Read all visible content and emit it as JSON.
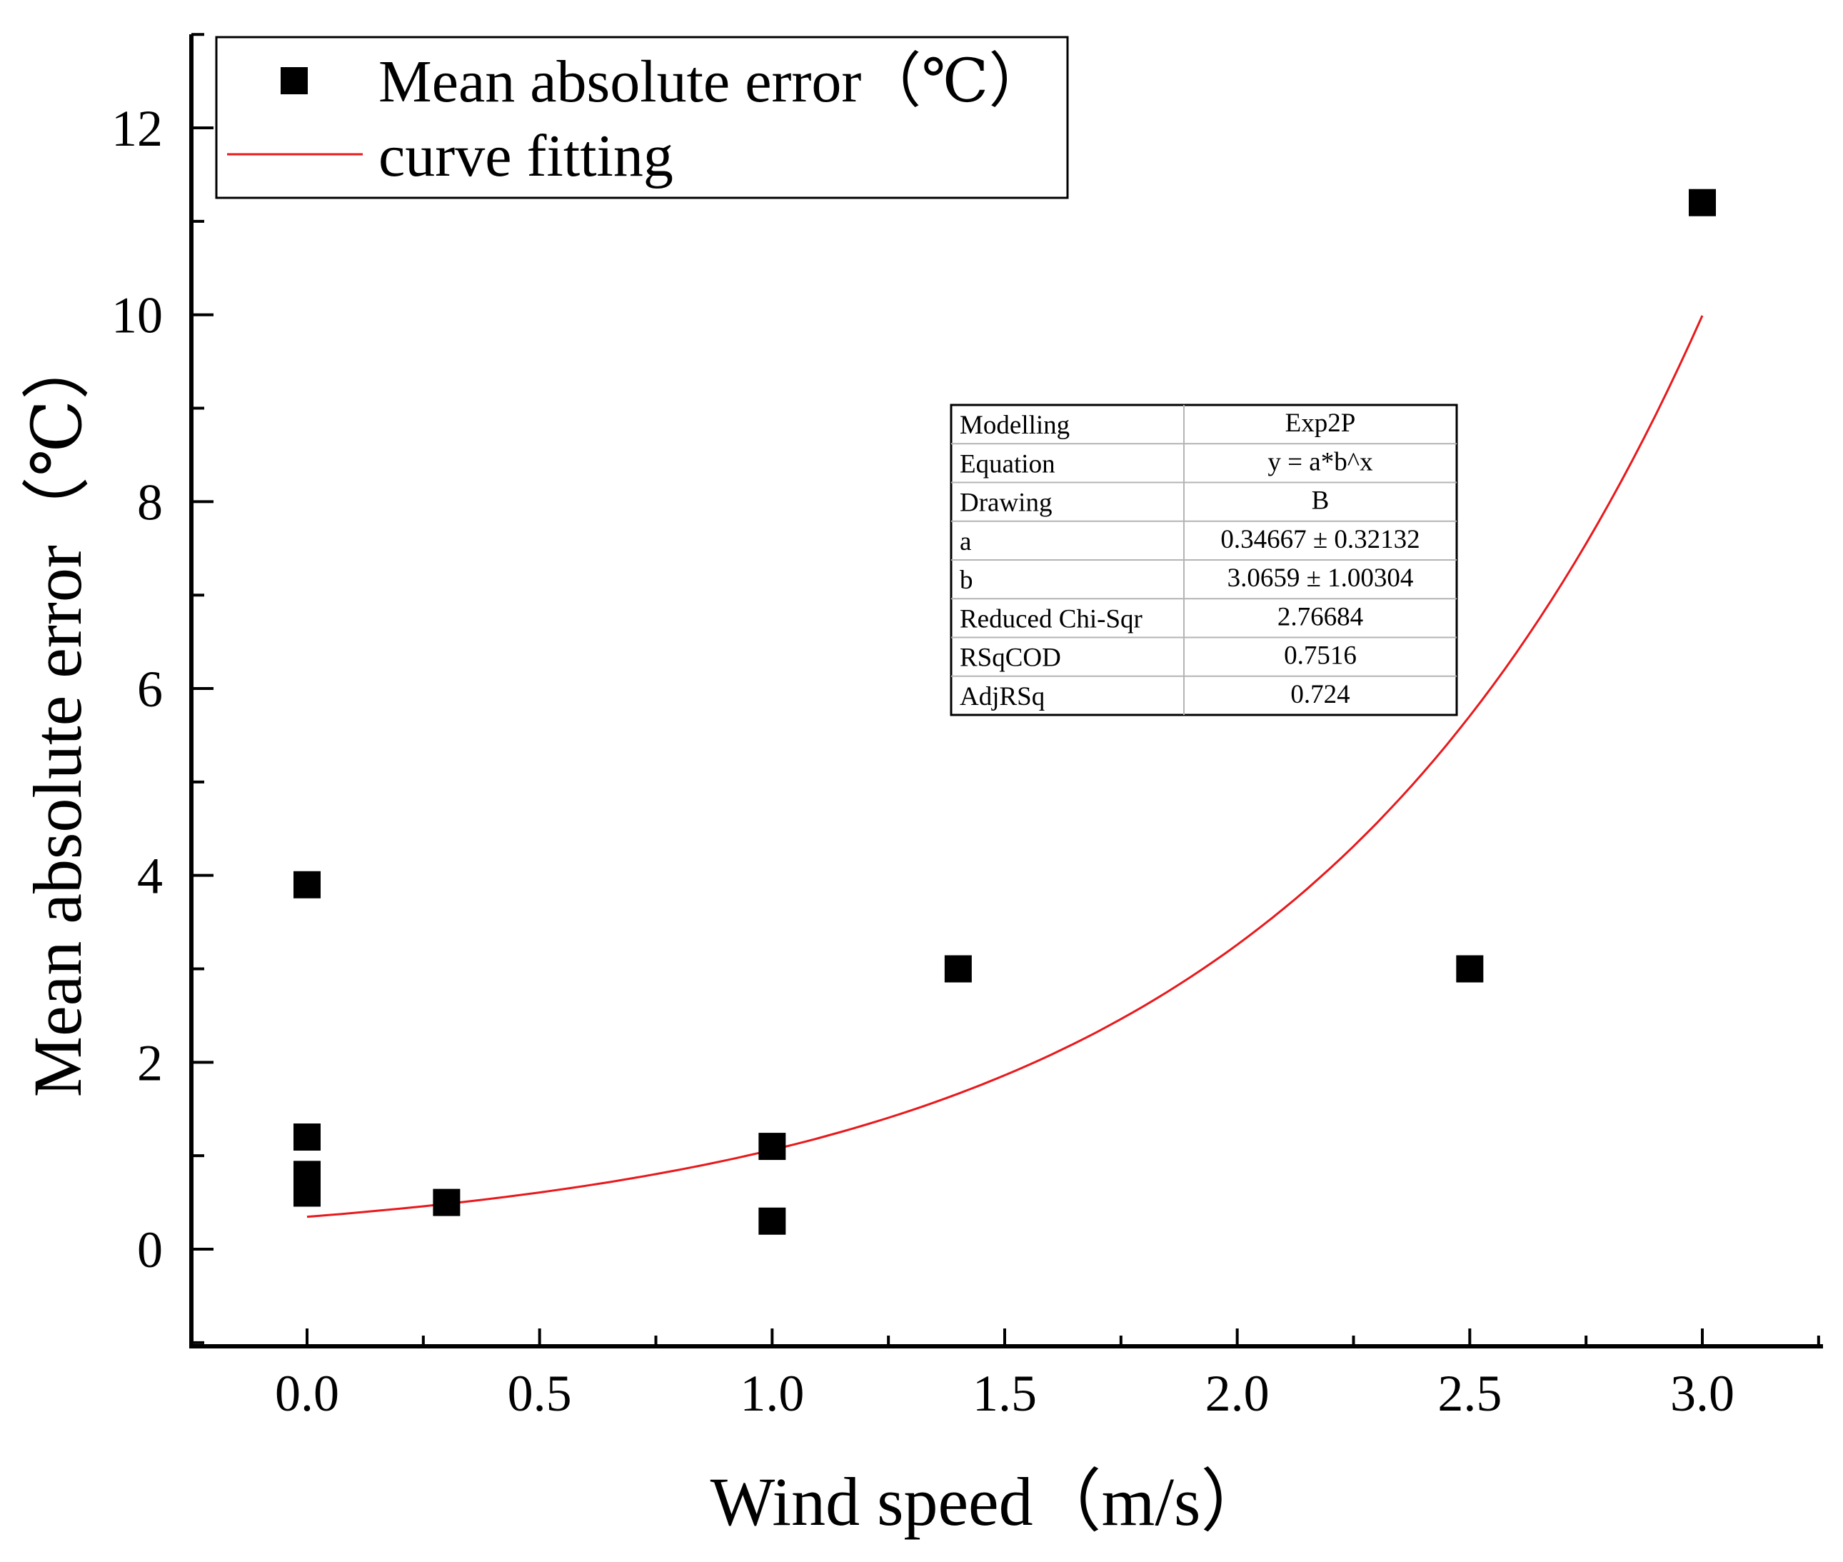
{
  "chart_data": {
    "type": "scatter",
    "title": "",
    "xlabel": "Wind speed（m/s）",
    "ylabel": "Mean absolute error（℃）",
    "xlim": [
      -0.25,
      3.25
    ],
    "ylim": [
      -1,
      13
    ],
    "x_ticks": [
      0.0,
      0.5,
      1.0,
      1.5,
      2.0,
      2.5,
      3.0
    ],
    "x_tick_labels": [
      "0.0",
      "0.5",
      "1.0",
      "1.5",
      "2.0",
      "2.5",
      "3.0"
    ],
    "y_ticks": [
      0,
      2,
      4,
      6,
      8,
      10,
      12
    ],
    "y_tick_labels": [
      "0",
      "2",
      "4",
      "6",
      "8",
      "10",
      "12"
    ],
    "grid": false,
    "legend_position": "top-left",
    "series": [
      {
        "name": "Mean absolute error（℃）",
        "kind": "scatter",
        "marker": "square",
        "color": "#000000",
        "points": [
          {
            "x": 0.0,
            "y": 3.9
          },
          {
            "x": 0.0,
            "y": 1.2
          },
          {
            "x": 0.0,
            "y": 0.8
          },
          {
            "x": 0.0,
            "y": 0.6
          },
          {
            "x": 0.3,
            "y": 0.5
          },
          {
            "x": 1.0,
            "y": 1.1
          },
          {
            "x": 1.0,
            "y": 0.3
          },
          {
            "x": 1.4,
            "y": 3.0
          },
          {
            "x": 2.5,
            "y": 3.0
          },
          {
            "x": 3.0,
            "y": 11.2
          }
        ]
      },
      {
        "name": "curve fitting",
        "kind": "fit",
        "model": "exponential",
        "a": 0.34667,
        "b": 3.0659,
        "x_range": [
          0.0,
          3.0
        ],
        "color": "#e8191c"
      }
    ],
    "fit_table": [
      {
        "label": "Modelling",
        "value": "Exp2P"
      },
      {
        "label": "Equation",
        "value": "y = a*b^x"
      },
      {
        "label": "Drawing",
        "value": "B"
      },
      {
        "label": "a",
        "value": "0.34667 ± 0.32132"
      },
      {
        "label": "b",
        "value": "3.0659 ± 1.00304"
      },
      {
        "label": "Reduced Chi-Sqr",
        "value": "2.76684"
      },
      {
        "label": "RSqCOD",
        "value": "0.7516"
      },
      {
        "label": "AdjRSq",
        "value": "0.724"
      }
    ]
  }
}
